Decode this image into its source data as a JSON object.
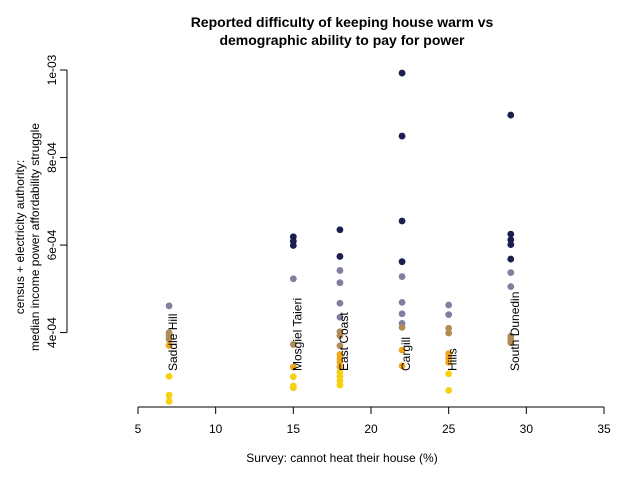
{
  "chart_data": {
    "type": "scatter",
    "title": [
      "Reported difficulty of keeping house warm vs",
      "demographic ability to pay for power"
    ],
    "xlabel": "Survey: cannot heat their house (%)",
    "ylabel": [
      "census + electricity authority:",
      "median income power affordability struggle"
    ],
    "xlim": [
      5,
      35
    ],
    "ylim": [
      0.00023,
      0.001
    ],
    "x_ticks": [
      5,
      10,
      15,
      20,
      25,
      30,
      35
    ],
    "y_ticks": [
      0.0004,
      0.0006,
      0.0008,
      0.001
    ],
    "y_tick_labels": [
      "4e-04",
      "6e-04",
      "8e-04",
      "1e-03"
    ],
    "grid": false,
    "colors": {
      "navy": "#1b1f4f",
      "slate": "#7f7f9f",
      "tan": "#b08d57",
      "orange": "#f0a81a",
      "yellow": "#f5d10f"
    },
    "groups": [
      {
        "label": "Saddle Hill",
        "x": 7,
        "points": [
          {
            "y": 0.000461,
            "color": "slate"
          },
          {
            "y": 0.0004,
            "color": "tan"
          },
          {
            "y": 0.000393,
            "color": "tan"
          },
          {
            "y": 0.000385,
            "color": "tan"
          },
          {
            "y": 0.000371,
            "color": "orange"
          },
          {
            "y": 0.0003,
            "color": "yellow"
          },
          {
            "y": 0.000257,
            "color": "yellow"
          },
          {
            "y": 0.000243,
            "color": "yellow"
          }
        ]
      },
      {
        "label": "Mosgiel Taieri",
        "x": 15,
        "points": [
          {
            "y": 0.000619,
            "color": "navy"
          },
          {
            "y": 0.000609,
            "color": "navy"
          },
          {
            "y": 0.000599,
            "color": "navy"
          },
          {
            "y": 0.000523,
            "color": "slate"
          },
          {
            "y": 0.000373,
            "color": "tan"
          },
          {
            "y": 0.000321,
            "color": "orange"
          },
          {
            "y": 0.000299,
            "color": "yellow"
          },
          {
            "y": 0.000278,
            "color": "yellow"
          },
          {
            "y": 0.000274,
            "color": "yellow"
          }
        ]
      },
      {
        "label": "East Coast",
        "x": 18,
        "points": [
          {
            "y": 0.000635,
            "color": "navy"
          },
          {
            "y": 0.000574,
            "color": "navy"
          },
          {
            "y": 0.000542,
            "color": "slate"
          },
          {
            "y": 0.000514,
            "color": "slate"
          },
          {
            "y": 0.000467,
            "color": "slate"
          },
          {
            "y": 0.000435,
            "color": "slate"
          },
          {
            "y": 0.000402,
            "color": "tan"
          },
          {
            "y": 0.000393,
            "color": "tan"
          },
          {
            "y": 0.00037,
            "color": "tan"
          },
          {
            "y": 0.00035,
            "color": "orange"
          },
          {
            "y": 0.000342,
            "color": "orange"
          },
          {
            "y": 0.000333,
            "color": "orange"
          },
          {
            "y": 0.000322,
            "color": "orange"
          },
          {
            "y": 0.00031,
            "color": "yellow"
          },
          {
            "y": 0.0003,
            "color": "yellow"
          },
          {
            "y": 0.00029,
            "color": "yellow"
          },
          {
            "y": 0.00028,
            "color": "yellow"
          }
        ]
      },
      {
        "label": "Cargill",
        "x": 22,
        "points": [
          {
            "y": 0.000993,
            "color": "navy"
          },
          {
            "y": 0.000849,
            "color": "navy"
          },
          {
            "y": 0.000655,
            "color": "navy"
          },
          {
            "y": 0.000562,
            "color": "navy"
          },
          {
            "y": 0.000528,
            "color": "slate"
          },
          {
            "y": 0.000469,
            "color": "slate"
          },
          {
            "y": 0.000443,
            "color": "slate"
          },
          {
            "y": 0.000421,
            "color": "slate"
          },
          {
            "y": 0.000412,
            "color": "tan"
          },
          {
            "y": 0.00036,
            "color": "orange"
          },
          {
            "y": 0.000324,
            "color": "orange"
          }
        ]
      },
      {
        "label": "Hills",
        "x": 25,
        "points": [
          {
            "y": 0.000463,
            "color": "slate"
          },
          {
            "y": 0.000441,
            "color": "slate"
          },
          {
            "y": 0.00041,
            "color": "tan"
          },
          {
            "y": 0.000399,
            "color": "tan"
          },
          {
            "y": 0.000352,
            "color": "orange"
          },
          {
            "y": 0.000342,
            "color": "orange"
          },
          {
            "y": 0.000332,
            "color": "orange"
          },
          {
            "y": 0.000306,
            "color": "yellow"
          },
          {
            "y": 0.000268,
            "color": "yellow"
          }
        ]
      },
      {
        "label": "South Dunedin",
        "x": 29,
        "points": [
          {
            "y": 0.000897,
            "color": "navy"
          },
          {
            "y": 0.000625,
            "color": "navy"
          },
          {
            "y": 0.000612,
            "color": "navy"
          },
          {
            "y": 0.000601,
            "color": "navy"
          },
          {
            "y": 0.000568,
            "color": "navy"
          },
          {
            "y": 0.000537,
            "color": "slate"
          },
          {
            "y": 0.000505,
            "color": "slate"
          },
          {
            "y": 0.000392,
            "color": "tan"
          },
          {
            "y": 0.000384,
            "color": "tan"
          },
          {
            "y": 0.000377,
            "color": "tan"
          }
        ]
      }
    ]
  }
}
